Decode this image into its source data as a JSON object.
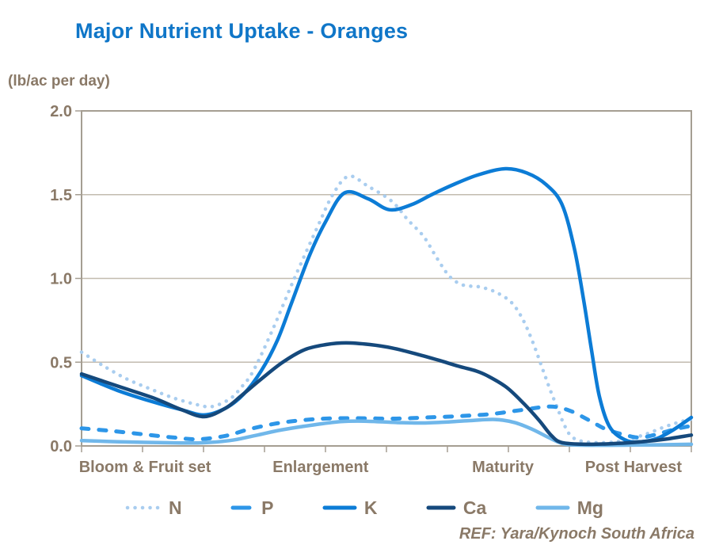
{
  "title": "Major Nutrient Uptake - Oranges",
  "y_axis_unit": "(lb/ac per day)",
  "ref_text": "REF: Yara/Kynoch South Africa",
  "colors": {
    "title": "#0F76C8",
    "label_text": "#8A7967",
    "axis": "#A59E92",
    "grid": "#C2BBAF",
    "background": "#FFFFFF"
  },
  "chart_data": {
    "type": "line",
    "title": "Major Nutrient Uptake - Oranges",
    "xlabel": "",
    "ylabel": "(lb/ac per day)",
    "ylim": [
      0,
      2
    ],
    "y_tick_labels": [
      "0.0",
      "0.5",
      "1.0",
      "1.5",
      "2.0"
    ],
    "y_tick_values": [
      0,
      0.5,
      1.0,
      1.5,
      2.0
    ],
    "x_minor_tick_count": 11,
    "grid": true,
    "legend_position": "bottom",
    "x_categories": [
      {
        "label": "Bloom & Fruit set",
        "pos": 0.104
      },
      {
        "label": "Enlargement",
        "pos": 0.392
      },
      {
        "label": "Maturity",
        "pos": 0.691
      },
      {
        "label": "Post Harvest",
        "pos": 0.905
      }
    ],
    "series": [
      {
        "name": "N",
        "color": "#A9CDEF",
        "line_style": "dotted",
        "points": [
          [
            0.0,
            0.56
          ],
          [
            0.035,
            0.48
          ],
          [
            0.074,
            0.4
          ],
          [
            0.113,
            0.34
          ],
          [
            0.152,
            0.285
          ],
          [
            0.191,
            0.245
          ],
          [
            0.214,
            0.235
          ],
          [
            0.243,
            0.28
          ],
          [
            0.262,
            0.35
          ],
          [
            0.282,
            0.45
          ],
          [
            0.314,
            0.7
          ],
          [
            0.349,
            1.0
          ],
          [
            0.386,
            1.3
          ],
          [
            0.412,
            1.5
          ],
          [
            0.438,
            1.61
          ],
          [
            0.47,
            1.55
          ],
          [
            0.509,
            1.46
          ],
          [
            0.535,
            1.35
          ],
          [
            0.561,
            1.25
          ],
          [
            0.583,
            1.12
          ],
          [
            0.604,
            1.01
          ],
          [
            0.626,
            0.96
          ],
          [
            0.652,
            0.95
          ],
          [
            0.678,
            0.92
          ],
          [
            0.704,
            0.86
          ],
          [
            0.723,
            0.76
          ],
          [
            0.74,
            0.62
          ],
          [
            0.756,
            0.46
          ],
          [
            0.769,
            0.33
          ],
          [
            0.779,
            0.24
          ],
          [
            0.791,
            0.13
          ],
          [
            0.804,
            0.055
          ],
          [
            0.825,
            0.025
          ],
          [
            0.86,
            0.02
          ],
          [
            0.892,
            0.035
          ],
          [
            0.925,
            0.07
          ],
          [
            0.957,
            0.115
          ],
          [
            0.983,
            0.145
          ],
          [
            1.0,
            0.16
          ]
        ]
      },
      {
        "name": "P",
        "color": "#2D96E8",
        "line_style": "dashed",
        "points": [
          [
            0.0,
            0.105
          ],
          [
            0.048,
            0.09
          ],
          [
            0.1,
            0.07
          ],
          [
            0.152,
            0.05
          ],
          [
            0.191,
            0.04
          ],
          [
            0.236,
            0.06
          ],
          [
            0.275,
            0.1
          ],
          [
            0.321,
            0.135
          ],
          [
            0.366,
            0.155
          ],
          [
            0.412,
            0.165
          ],
          [
            0.464,
            0.165
          ],
          [
            0.516,
            0.163
          ],
          [
            0.567,
            0.17
          ],
          [
            0.619,
            0.178
          ],
          [
            0.671,
            0.19
          ],
          [
            0.723,
            0.215
          ],
          [
            0.769,
            0.235
          ],
          [
            0.801,
            0.21
          ],
          [
            0.834,
            0.15
          ],
          [
            0.86,
            0.1
          ],
          [
            0.892,
            0.065
          ],
          [
            0.916,
            0.05
          ],
          [
            0.944,
            0.07
          ],
          [
            0.973,
            0.1
          ],
          [
            1.0,
            0.12
          ]
        ]
      },
      {
        "name": "K",
        "color": "#0C7CD6",
        "line_style": "solid",
        "points": [
          [
            0.0,
            0.42
          ],
          [
            0.06,
            0.33
          ],
          [
            0.12,
            0.26
          ],
          [
            0.165,
            0.215
          ],
          [
            0.201,
            0.185
          ],
          [
            0.236,
            0.225
          ],
          [
            0.266,
            0.31
          ],
          [
            0.295,
            0.45
          ],
          [
            0.321,
            0.63
          ],
          [
            0.344,
            0.85
          ],
          [
            0.373,
            1.13
          ],
          [
            0.399,
            1.33
          ],
          [
            0.431,
            1.51
          ],
          [
            0.47,
            1.475
          ],
          [
            0.505,
            1.41
          ],
          [
            0.541,
            1.44
          ],
          [
            0.574,
            1.5
          ],
          [
            0.613,
            1.565
          ],
          [
            0.652,
            1.62
          ],
          [
            0.695,
            1.655
          ],
          [
            0.73,
            1.63
          ],
          [
            0.762,
            1.56
          ],
          [
            0.788,
            1.44
          ],
          [
            0.808,
            1.18
          ],
          [
            0.823,
            0.88
          ],
          [
            0.836,
            0.58
          ],
          [
            0.849,
            0.3
          ],
          [
            0.866,
            0.115
          ],
          [
            0.892,
            0.035
          ],
          [
            0.918,
            0.025
          ],
          [
            0.944,
            0.045
          ],
          [
            0.97,
            0.095
          ],
          [
            1.0,
            0.17
          ]
        ]
      },
      {
        "name": "Ca",
        "color": "#15497C",
        "line_style": "solid",
        "points": [
          [
            0.0,
            0.43
          ],
          [
            0.061,
            0.355
          ],
          [
            0.119,
            0.285
          ],
          [
            0.165,
            0.215
          ],
          [
            0.201,
            0.175
          ],
          [
            0.236,
            0.225
          ],
          [
            0.262,
            0.3
          ],
          [
            0.295,
            0.4
          ],
          [
            0.33,
            0.5
          ],
          [
            0.366,
            0.575
          ],
          [
            0.401,
            0.605
          ],
          [
            0.434,
            0.615
          ],
          [
            0.473,
            0.605
          ],
          [
            0.509,
            0.585
          ],
          [
            0.548,
            0.55
          ],
          [
            0.587,
            0.51
          ],
          [
            0.619,
            0.475
          ],
          [
            0.645,
            0.45
          ],
          [
            0.665,
            0.42
          ],
          [
            0.697,
            0.35
          ],
          [
            0.726,
            0.25
          ],
          [
            0.751,
            0.15
          ],
          [
            0.771,
            0.06
          ],
          [
            0.788,
            0.02
          ],
          [
            0.827,
            0.01
          ],
          [
            0.879,
            0.015
          ],
          [
            0.918,
            0.025
          ],
          [
            0.957,
            0.04
          ],
          [
            1.0,
            0.065
          ]
        ]
      },
      {
        "name": "Mg",
        "color": "#70B7EA",
        "line_style": "solid",
        "points": [
          [
            0.0,
            0.032
          ],
          [
            0.061,
            0.025
          ],
          [
            0.126,
            0.02
          ],
          [
            0.191,
            0.018
          ],
          [
            0.243,
            0.032
          ],
          [
            0.282,
            0.06
          ],
          [
            0.327,
            0.095
          ],
          [
            0.379,
            0.125
          ],
          [
            0.425,
            0.145
          ],
          [
            0.464,
            0.148
          ],
          [
            0.516,
            0.14
          ],
          [
            0.555,
            0.137
          ],
          [
            0.594,
            0.142
          ],
          [
            0.632,
            0.15
          ],
          [
            0.678,
            0.158
          ],
          [
            0.71,
            0.14
          ],
          [
            0.739,
            0.1
          ],
          [
            0.766,
            0.05
          ],
          [
            0.788,
            0.015
          ],
          [
            0.814,
            0.005
          ],
          [
            0.905,
            0.005
          ],
          [
            1.0,
            0.01
          ]
        ]
      }
    ]
  }
}
